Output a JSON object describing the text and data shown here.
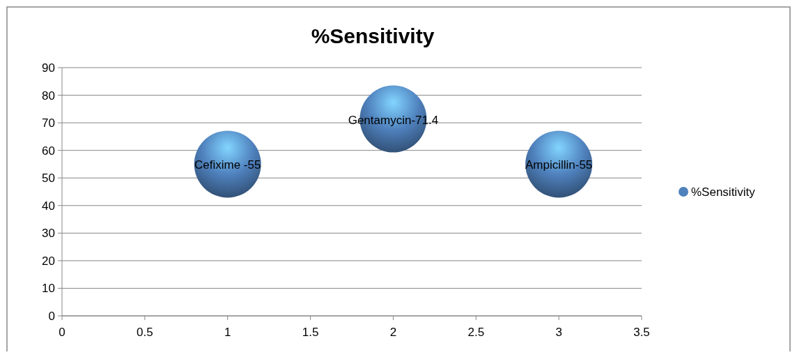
{
  "chart_data": {
    "type": "bubble",
    "title": "%Sensitivity",
    "x": [
      1,
      2,
      3
    ],
    "series": [
      {
        "name": "%Sensitivity",
        "color": "#4f81bd",
        "values": [
          55,
          71.4,
          55
        ],
        "sizes": [
          1,
          1,
          1
        ]
      }
    ],
    "annotations": [
      {
        "text": "Cefixime -55",
        "x": 1,
        "y": 55
      },
      {
        "text": "Gentamycin-71.4",
        "x": 2,
        "y": 71.4
      },
      {
        "text": "Ampicillin-55",
        "x": 3,
        "y": 55
      }
    ],
    "xlim": [
      0,
      3.5
    ],
    "xticks": [
      0,
      0.5,
      1,
      1.5,
      2,
      2.5,
      3,
      3.5
    ],
    "ylim": [
      0,
      90
    ],
    "yticks": [
      0,
      10,
      20,
      30,
      40,
      50,
      60,
      70,
      80,
      90
    ],
    "grid": "y",
    "legend": "right"
  }
}
